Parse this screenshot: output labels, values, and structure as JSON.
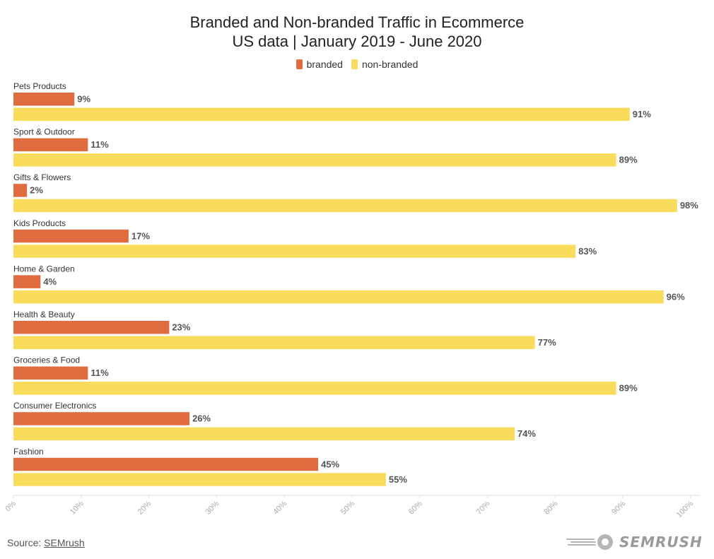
{
  "title": "Branded and Non-branded Traffic in Ecommerce",
  "subtitle": "US data | January 2019 - June 2020",
  "legend": [
    {
      "label": "branded",
      "color": "#e06b3e"
    },
    {
      "label": "non-branded",
      "color": "#f9dc5c"
    }
  ],
  "source": {
    "prefix": "Source: ",
    "link": "SEMrush"
  },
  "logo": {
    "text": "SEMRUSH",
    "icon": "semrush-fireball-icon"
  },
  "chart_data": {
    "type": "bar",
    "orientation": "horizontal",
    "categories": [
      "Pets Products",
      "Sport & Outdoor",
      "Gifts & Flowers",
      "Kids Products",
      "Home & Garden",
      "Health & Beauty",
      "Groceries & Food",
      "Consumer Electronics",
      "Fashion"
    ],
    "series": [
      {
        "name": "branded",
        "color": "#e06b3e",
        "values": [
          9,
          11,
          2,
          17,
          4,
          23,
          11,
          26,
          45
        ]
      },
      {
        "name": "non-branded",
        "color": "#f9dc5c",
        "values": [
          91,
          89,
          98,
          83,
          96,
          77,
          89,
          74,
          55
        ]
      }
    ],
    "value_labels": {
      "branded": [
        "9%",
        "11%",
        "2%",
        "17%",
        "4%",
        "23%",
        "11%",
        "26%",
        "45%"
      ],
      "non-branded": [
        "91%",
        "89%",
        "98%",
        "83%",
        "96%",
        "77%",
        "89%",
        "74%",
        "55%"
      ]
    },
    "xlim": [
      0,
      100
    ],
    "x_ticks": [
      "0%",
      "10%",
      "20%",
      "30%",
      "40%",
      "50%",
      "60%",
      "70%",
      "80%",
      "90%",
      "100%"
    ],
    "grid": false,
    "legend_position": "top-center"
  }
}
